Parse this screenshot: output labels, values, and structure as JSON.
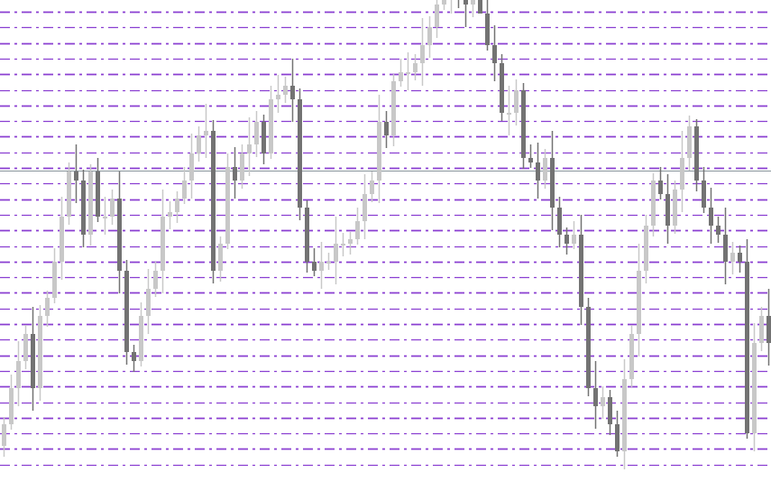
{
  "chart_data": {
    "type": "candlestick",
    "title": "",
    "xlabel": "",
    "ylabel": "",
    "ylim": [
      0,
      534
    ],
    "grid": false,
    "colors": {
      "bullish": "#c8c8c8",
      "bearish": "#737373",
      "level_lines": "#8a3fd1",
      "horizontal_line": "#8a959c",
      "background": "#ffffff"
    },
    "level_lines": [
      521,
      503.7,
      486.4,
      469.1,
      451.8,
      434.5,
      417.2,
      399.9,
      382.6,
      365.3,
      348,
      330.7,
      313.4,
      296.1,
      278.8,
      261.5,
      244.2,
      226.9,
      209.6,
      192.3,
      175,
      157.7,
      140.4,
      123.1,
      105.8,
      88.5,
      71.2,
      53.9,
      36.6,
      19.3
    ],
    "horizontal_line": 345,
    "open": [
      40,
      64,
      104,
      134,
      164,
      104,
      184,
      204,
      244,
      294,
      344,
      334,
      274,
      344,
      294,
      294,
      314,
      234,
      144,
      134,
      184,
      214,
      234,
      294,
      299,
      314,
      334,
      364,
      384,
      389,
      234,
      264,
      349,
      334,
      364,
      374,
      399,
      364,
      424,
      429,
      439,
      424,
      304,
      244,
      234,
      244,
      244,
      264,
      264,
      269,
      289,
      319,
      334,
      399,
      384,
      444,
      454,
      454,
      464,
      484,
      504,
      529,
      539,
      539,
      534,
      529,
      534,
      519,
      484,
      464,
      409,
      409,
      434,
      359,
      354,
      334,
      359,
      304,
      274,
      264,
      274,
      194,
      104,
      84,
      94,
      64,
      34,
      114,
      164,
      234,
      284,
      334,
      319,
      284,
      324,
      359,
      394,
      334,
      304,
      284,
      274,
      244,
      254,
      244,
      54,
      154,
      184
    ],
    "high": [
      72,
      119,
      156,
      174,
      194,
      196,
      212,
      259,
      316,
      354,
      374,
      346,
      352,
      359,
      316,
      324,
      344,
      246,
      152,
      199,
      236,
      244,
      324,
      311,
      322,
      349,
      386,
      394,
      419,
      401,
      272,
      364,
      371,
      374,
      404,
      411,
      407,
      439,
      451,
      449,
      469,
      436,
      312,
      259,
      266,
      254,
      294,
      276,
      277,
      304,
      341,
      344,
      429,
      411,
      452,
      469,
      476,
      474,
      514,
      516,
      537,
      554,
      561,
      549,
      564,
      546,
      542,
      534,
      506,
      474,
      439,
      446,
      442,
      374,
      376,
      369,
      389,
      316,
      282,
      289,
      296,
      204,
      134,
      106,
      102,
      79,
      136,
      174,
      264,
      296,
      342,
      349,
      341,
      334,
      389,
      406,
      402,
      349,
      326,
      294,
      304,
      266,
      262,
      269,
      176,
      194,
      214
    ],
    "low": [
      28,
      58,
      84,
      125,
      79,
      90,
      172,
      198,
      224,
      285,
      309,
      260,
      262,
      288,
      274,
      285,
      209,
      130,
      122,
      128,
      164,
      205,
      209,
      280,
      287,
      308,
      314,
      355,
      359,
      220,
      222,
      258,
      314,
      325,
      339,
      360,
      352,
      358,
      409,
      420,
      399,
      290,
      232,
      228,
      214,
      235,
      219,
      250,
      252,
      263,
      269,
      310,
      309,
      370,
      372,
      438,
      434,
      445,
      439,
      470,
      492,
      523,
      519,
      525,
      504,
      515,
      522,
      478,
      444,
      400,
      384,
      395,
      347,
      348,
      314,
      325,
      279,
      260,
      252,
      258,
      174,
      95,
      59,
      70,
      52,
      28,
      14,
      105,
      139,
      220,
      272,
      313,
      264,
      275,
      299,
      345,
      322,
      298,
      264,
      265,
      219,
      230,
      232,
      48,
      34,
      145,
      129
    ],
    "close": [
      64,
      104,
      134,
      164,
      104,
      184,
      204,
      244,
      294,
      344,
      334,
      274,
      344,
      294,
      294,
      314,
      234,
      144,
      134,
      184,
      214,
      234,
      294,
      299,
      314,
      334,
      364,
      384,
      389,
      234,
      264,
      349,
      334,
      364,
      374,
      399,
      364,
      424,
      429,
      439,
      424,
      304,
      244,
      234,
      244,
      244,
      264,
      264,
      269,
      289,
      319,
      334,
      399,
      384,
      444,
      454,
      454,
      464,
      484,
      504,
      529,
      539,
      539,
      534,
      529,
      534,
      519,
      484,
      464,
      409,
      409,
      434,
      359,
      354,
      334,
      359,
      304,
      274,
      264,
      274,
      194,
      104,
      84,
      94,
      64,
      34,
      114,
      164,
      234,
      284,
      334,
      319,
      284,
      324,
      359,
      394,
      334,
      304,
      284,
      274,
      244,
      254,
      244,
      54,
      154,
      184,
      154
    ]
  }
}
